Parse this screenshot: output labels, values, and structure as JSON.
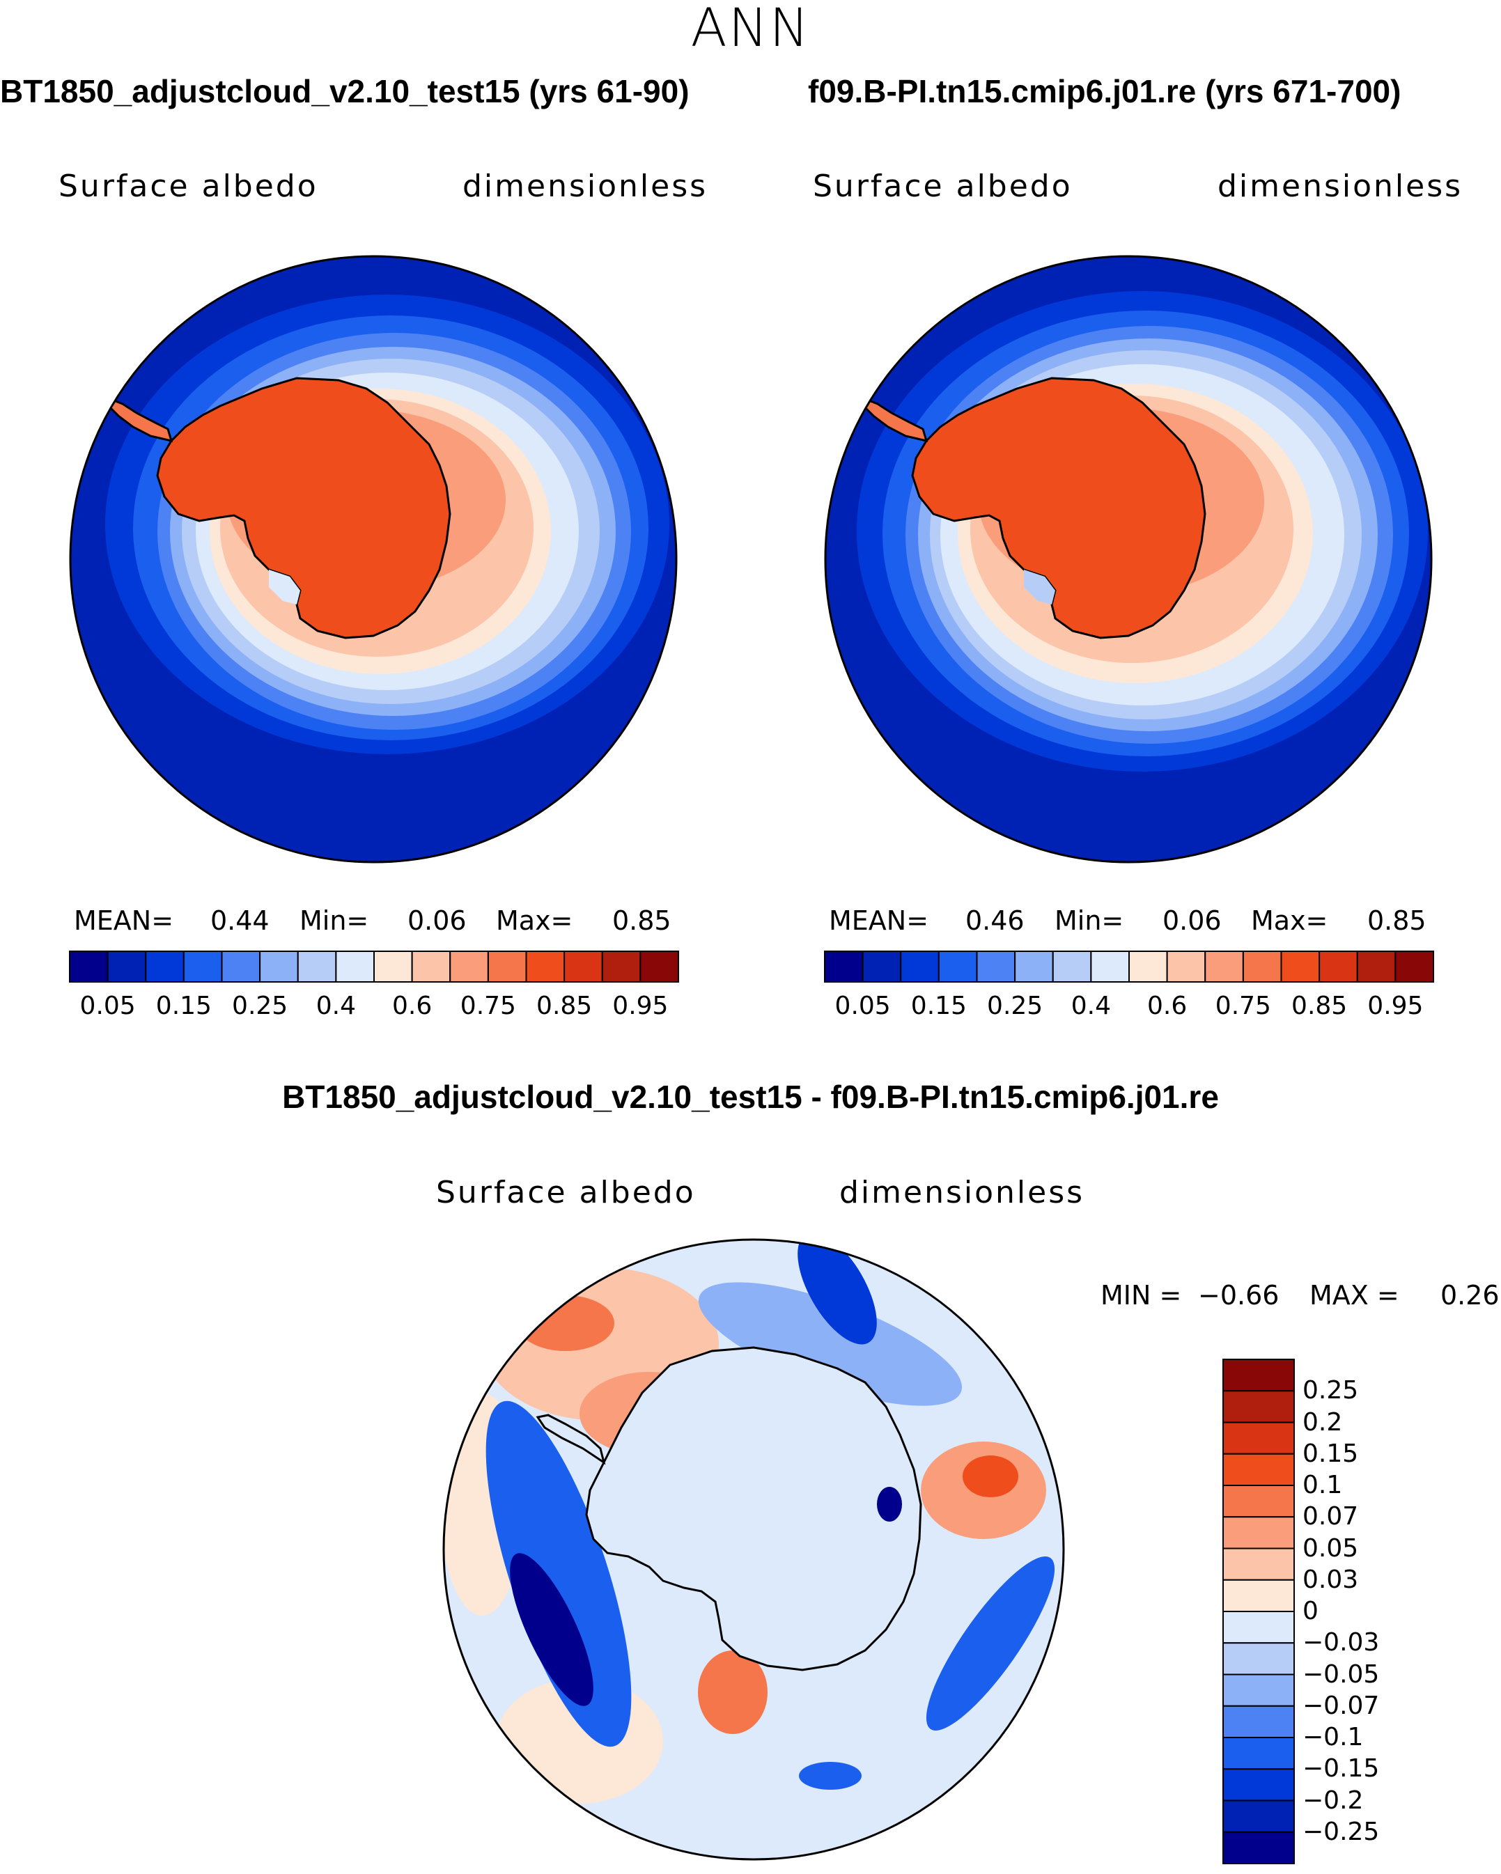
{
  "header": {
    "season": "ANN"
  },
  "panels": [
    {
      "title": "BT1850_adjustcloud_v2.10_test15 (yrs 61-90)",
      "variable": "Surface albedo",
      "units": "dimensionless",
      "stats": {
        "mean_label": "MEAN=",
        "mean": "0.44",
        "min_label": "Min=",
        "min": "0.06",
        "max_label": "Max=",
        "max": "0.85"
      }
    },
    {
      "title": "f09.B-PI.tn15.cmip6.j01.re (yrs 671-700)",
      "variable": "Surface albedo",
      "units": "dimensionless",
      "stats": {
        "mean_label": "MEAN=",
        "mean": "0.46",
        "min_label": "Min=",
        "min": "0.06",
        "max_label": "Max=",
        "max": "0.85"
      }
    }
  ],
  "diff_panel": {
    "title": "BT1850_adjustcloud_v2.10_test15 - f09.B-PI.tn15.cmip6.j01.re",
    "variable": "Surface albedo",
    "units": "dimensionless",
    "stats": {
      "min_label": "MIN =",
      "min": "−0.66",
      "max_label": "MAX =",
      "max": "0.26"
    }
  },
  "chart_data": [
    {
      "type": "heatmap",
      "projection": "south-polar-stereographic",
      "title": "BT1850_adjustcloud_v2.10_test15 (yrs 61-90)",
      "variable": "Surface albedo",
      "units": "dimensionless",
      "colorbar": {
        "orientation": "horizontal",
        "ticks": [
          "0.05",
          "0.15",
          "0.25",
          "0.4",
          "0.6",
          "0.75",
          "0.85",
          "0.95"
        ],
        "colors": [
          "#00008c",
          "#0022b4",
          "#0039d7",
          "#1a5fee",
          "#4d82f5",
          "#8db1f7",
          "#b6cdf7",
          "#ddeafc",
          "#fde7d6",
          "#fcc4a8",
          "#f99d7a",
          "#f5764b",
          "#f04d1d",
          "#d93414",
          "#b01f0e",
          "#8a0707"
        ]
      },
      "stats": {
        "mean": 0.44,
        "min": 0.06,
        "max": 0.85
      }
    },
    {
      "type": "heatmap",
      "projection": "south-polar-stereographic",
      "title": "f09.B-PI.tn15.cmip6.j01.re (yrs 671-700)",
      "variable": "Surface albedo",
      "units": "dimensionless",
      "colorbar": {
        "orientation": "horizontal",
        "ticks": [
          "0.05",
          "0.15",
          "0.25",
          "0.4",
          "0.6",
          "0.75",
          "0.85",
          "0.95"
        ],
        "colors": [
          "#00008c",
          "#0022b4",
          "#0039d7",
          "#1a5fee",
          "#4d82f5",
          "#8db1f7",
          "#b6cdf7",
          "#ddeafc",
          "#fde7d6",
          "#fcc4a8",
          "#f99d7a",
          "#f5764b",
          "#f04d1d",
          "#d93414",
          "#b01f0e",
          "#8a0707"
        ]
      },
      "stats": {
        "mean": 0.46,
        "min": 0.06,
        "max": 0.85
      }
    },
    {
      "type": "heatmap",
      "projection": "south-polar-stereographic",
      "title": "BT1850_adjustcloud_v2.10_test15 - f09.B-PI.tn15.cmip6.j01.re",
      "variable": "Surface albedo",
      "units": "dimensionless",
      "colorbar": {
        "orientation": "vertical",
        "ticks": [
          "0.25",
          "0.2",
          "0.15",
          "0.1",
          "0.07",
          "0.05",
          "0.03",
          "0",
          "−0.03",
          "−0.05",
          "−0.07",
          "−0.1",
          "−0.15",
          "−0.2",
          "−0.25"
        ],
        "colors": [
          "#8a0707",
          "#b01f0e",
          "#d93414",
          "#f04d1d",
          "#f5764b",
          "#f99d7a",
          "#fcc4a8",
          "#fde7d6",
          "#ddeafc",
          "#b6cdf7",
          "#8db1f7",
          "#4d82f5",
          "#1a5fee",
          "#0039d7",
          "#0022b4",
          "#00008c"
        ]
      },
      "stats": {
        "min": -0.66,
        "max": 0.26
      }
    }
  ]
}
